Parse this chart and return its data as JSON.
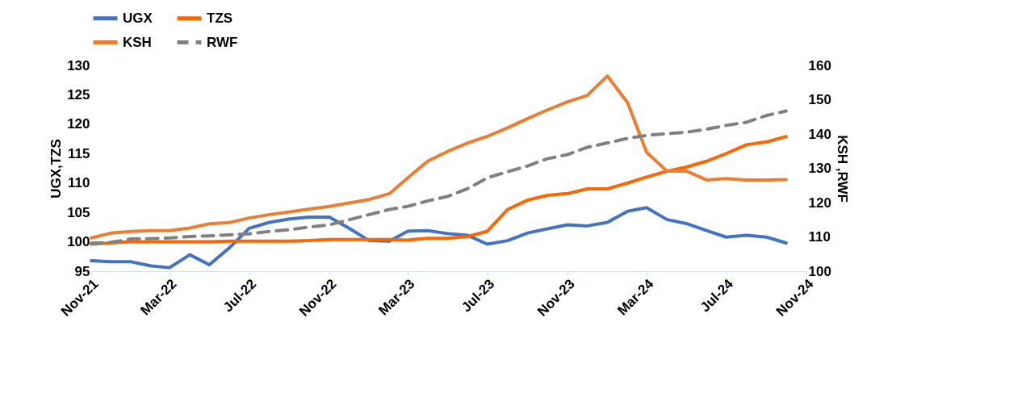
{
  "chart_data": {
    "type": "line",
    "ylabel": "UGX,TZS",
    "y2label": "KSH ,RWF",
    "x": [
      "2021-11",
      "2021-12",
      "2022-01",
      "2022-02",
      "2022-03",
      "2022-04",
      "2022-05",
      "2022-06",
      "2022-07",
      "2022-08",
      "2022-09",
      "2022-10",
      "2022-11",
      "2022-12",
      "2023-01",
      "2023-02",
      "2023-03",
      "2023-04",
      "2023-05",
      "2023-06",
      "2023-07",
      "2023-08",
      "2023-09",
      "2023-10",
      "2023-11",
      "2023-12",
      "2024-01",
      "2024-02",
      "2024-03",
      "2024-04",
      "2024-05",
      "2024-06",
      "2024-07",
      "2024-08",
      "2024-09",
      "2024-10"
    ],
    "xlim": [
      "2021-11",
      "2024-11"
    ],
    "xticks": [
      {
        "value": "2021-11",
        "label": "Nov-21"
      },
      {
        "value": "2022-03",
        "label": "Mar-22"
      },
      {
        "value": "2022-07",
        "label": "Jul-22"
      },
      {
        "value": "2022-11",
        "label": "Nov-22"
      },
      {
        "value": "2023-03",
        "label": "Mar-23"
      },
      {
        "value": "2023-07",
        "label": "Jul-23"
      },
      {
        "value": "2023-11",
        "label": "Nov-23"
      },
      {
        "value": "2024-03",
        "label": "Mar-24"
      },
      {
        "value": "2024-07",
        "label": "Jul-24"
      },
      {
        "value": "2024-11",
        "label": "Nov-24"
      }
    ],
    "ylim": [
      95,
      130
    ],
    "yticks": [
      95,
      100,
      105,
      110,
      115,
      120,
      125,
      130
    ],
    "y2lim": [
      100,
      160
    ],
    "y2ticks": [
      100,
      110,
      120,
      130,
      140,
      150,
      160
    ],
    "grid": false,
    "legend": "top left",
    "series": [
      {
        "name": "UGX",
        "color": "#4472c4",
        "line_style": "solid",
        "values": [
          96.8,
          96.6,
          96.6,
          95.9,
          95.6,
          97.8,
          96.1,
          99.0,
          102.3,
          103.3,
          103.9,
          104.2,
          104.2,
          102.3,
          100.2,
          100.1,
          101.8,
          101.9,
          101.4,
          101.1,
          99.6,
          100.2,
          101.5,
          102.2,
          102.9,
          102.7,
          103.3,
          105.2,
          105.8,
          103.8,
          103.1,
          101.9,
          100.8,
          101.1,
          100.8,
          99.8
        ]
      },
      {
        "name": "TZS",
        "color": "#ff6600",
        "line_style": "solid",
        "values": [
          99.6,
          99.8,
          100.0,
          100.0,
          100.0,
          100.0,
          100.0,
          100.1,
          100.1,
          100.1,
          100.1,
          100.2,
          100.4,
          100.4,
          100.4,
          100.4,
          100.3,
          100.6,
          100.6,
          100.9,
          101.8,
          105.5,
          107.1,
          107.9,
          108.2,
          109.0,
          109.0,
          110.0,
          111.0,
          112.0,
          112.7,
          113.7,
          115.0,
          116.5,
          117.0,
          117.9
        ]
      },
      {
        "name": "KSH",
        "color": "#ed7d31",
        "axis": "y2",
        "line_style": "solid",
        "values": [
          109.7,
          111.1,
          111.6,
          111.8,
          111.8,
          112.6,
          113.8,
          114.2,
          115.5,
          116.5,
          117.3,
          118.1,
          118.9,
          119.9,
          120.9,
          122.6,
          127.2,
          132.1,
          134.9,
          137.4,
          139.3,
          141.8,
          144.5,
          147.0,
          149.4,
          151.2,
          156.9,
          149.1,
          134.7,
          129.2,
          129.2,
          126.6,
          127.0,
          126.6,
          126.6,
          126.7
        ]
      },
      {
        "name": "RWF",
        "color": "#808080",
        "axis": "y2",
        "line_style": "dashed",
        "values": [
          108.2,
          108.4,
          109.4,
          109.5,
          109.7,
          110.1,
          110.3,
          110.6,
          110.9,
          111.6,
          112.1,
          112.9,
          113.5,
          115.0,
          116.5,
          118.0,
          118.9,
          120.5,
          121.8,
          124.1,
          127.2,
          129.0,
          130.7,
          132.8,
          134.0,
          136.1,
          137.4,
          138.7,
          139.6,
          140.1,
          140.5,
          141.4,
          142.5,
          143.4,
          145.4,
          146.7
        ]
      }
    ]
  }
}
